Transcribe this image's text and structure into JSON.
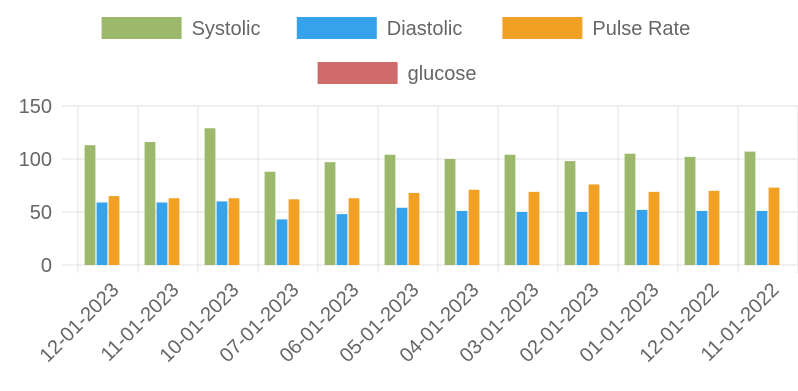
{
  "chart_data": {
    "type": "bar",
    "categories": [
      "12-01-2023",
      "11-01-2023",
      "10-01-2023",
      "07-01-2023",
      "06-01-2023",
      "05-01-2023",
      "04-01-2023",
      "03-01-2023",
      "02-01-2023",
      "01-01-2023",
      "12-01-2022",
      "11-01-2022"
    ],
    "series": [
      {
        "name": "Systolic",
        "color": "#9cb86a",
        "values": [
          113,
          116,
          129,
          88,
          97,
          104,
          100,
          104,
          98,
          105,
          102,
          107
        ]
      },
      {
        "name": "Diastolic",
        "color": "#36a2eb",
        "values": [
          59,
          59,
          60,
          43,
          48,
          54,
          51,
          50,
          50,
          52,
          51,
          51
        ]
      },
      {
        "name": "Pulse Rate",
        "color": "#f0a123",
        "values": [
          65,
          63,
          63,
          62,
          63,
          68,
          71,
          69,
          76,
          69,
          70,
          73
        ]
      },
      {
        "name": "glucose",
        "color": "#cf6a6a",
        "values": [
          null,
          null,
          null,
          null,
          null,
          null,
          null,
          null,
          null,
          null,
          null,
          null
        ]
      }
    ],
    "y_ticks": [
      0,
      50,
      100,
      150
    ],
    "ylim": [
      0,
      150
    ],
    "grid": true,
    "legend_position": "top"
  }
}
